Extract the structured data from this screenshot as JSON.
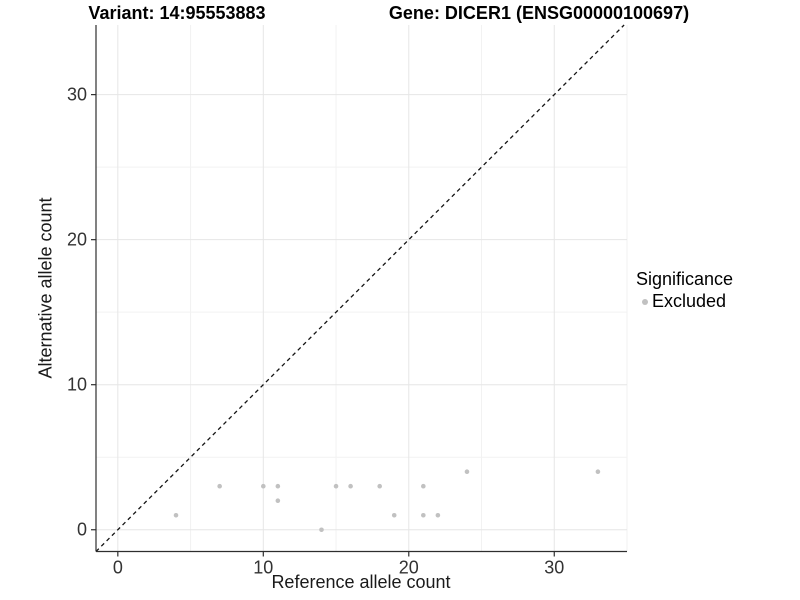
{
  "chart_data": {
    "type": "scatter",
    "title_left": "Variant: 14:95553883",
    "title_right": "Gene: DICER1 (ENSG00000100697)",
    "xlabel": "Reference allele count",
    "ylabel": "Alternative allele count",
    "xlim": [
      -1.5,
      35
    ],
    "ylim": [
      -1.5,
      34.8
    ],
    "xticks": [
      0,
      10,
      20,
      30
    ],
    "yticks": [
      0,
      10,
      20,
      30
    ],
    "xminor": [
      5,
      15,
      25,
      35
    ],
    "yminor": [
      5,
      15,
      25
    ],
    "grid": true,
    "identity_line": {
      "equation": "y = x",
      "style": "dashed"
    },
    "legend": {
      "title": "Significance",
      "position": "right",
      "items": [
        {
          "label": "Excluded",
          "color": "#c1c1c1"
        }
      ]
    },
    "series": [
      {
        "name": "Excluded",
        "color": "#c1c1c1",
        "points": [
          [
            4,
            1
          ],
          [
            7,
            3
          ],
          [
            10,
            3
          ],
          [
            11,
            2
          ],
          [
            11,
            3
          ],
          [
            14,
            0
          ],
          [
            15,
            3
          ],
          [
            16,
            3
          ],
          [
            18,
            3
          ],
          [
            19,
            1
          ],
          [
            21,
            1
          ],
          [
            21,
            3
          ],
          [
            22,
            1
          ],
          [
            24,
            4
          ],
          [
            33,
            4
          ]
        ]
      }
    ],
    "colors": {
      "point": "#c1c1c1",
      "grid_major": "#e6e6e6",
      "grid_minor": "#f2f2f2",
      "axis": "#2e2e2e",
      "tick_label": "#333333",
      "identity": "#141414"
    }
  }
}
